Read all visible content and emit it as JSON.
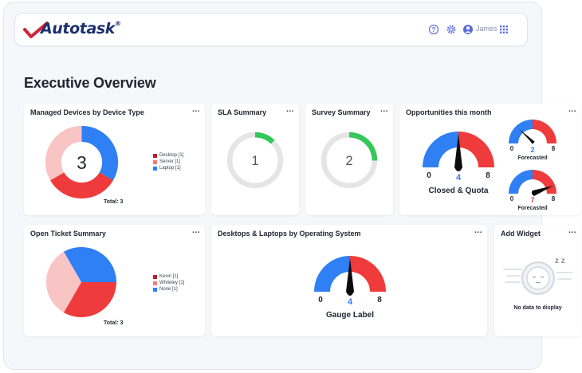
{
  "header": {
    "logo_text": "Autotask",
    "logo_reg": "®",
    "user_name": "James",
    "icons": [
      "help-icon",
      "gear-icon",
      "user-avatar-icon",
      "apps-grid-icon"
    ]
  },
  "page": {
    "title": "Executive Overview"
  },
  "colors": {
    "red": "#ef3b3b",
    "blue": "#2f7ff5",
    "pink": "#f8c4c4",
    "green": "#34c759",
    "ring_gray": "#e5e5e5",
    "menu_dots": "..."
  },
  "widgets": {
    "managed_devices": {
      "title": "Managed Devices by Device Type",
      "menu": "...",
      "center_value": "3",
      "legend": [
        {
          "label": "Desktop [1]",
          "color": "#b4232f"
        },
        {
          "label": "Server [1]",
          "color": "#f47a7a"
        },
        {
          "label": "Laptop [1]",
          "color": "#2f7ff5"
        }
      ],
      "total": "Total: 3"
    },
    "sla_summary": {
      "title": "SLA Summary",
      "menu": "...",
      "value": "1",
      "progress": 0.12
    },
    "survey_summary": {
      "title": "Survey Summary",
      "menu": "...",
      "value": "2",
      "progress": 0.25
    },
    "opportunities": {
      "title": "Opportunities this month",
      "menu": "...",
      "main_gauge": {
        "min": "0",
        "max": "8",
        "value": "4",
        "label": "Closed & Quota"
      },
      "small_gauges": [
        {
          "min": "0",
          "max": "8",
          "value": "2",
          "label": "Forecasted"
        },
        {
          "min": "0",
          "max": "8",
          "value": "7",
          "label": "Forecasted"
        }
      ]
    },
    "open_tickets": {
      "title": "Open Ticket Summary",
      "menu": "...",
      "legend": [
        {
          "label": "Kevin [1]",
          "color": "#b4232f"
        },
        {
          "label": "Whiteley [1]",
          "color": "#f47a7a"
        },
        {
          "label": "None [1]",
          "color": "#2f7ff5"
        }
      ],
      "total": "Total: 3"
    },
    "desktops_laptops": {
      "title": "Desktops & Laptops by Operating System",
      "menu": "...",
      "gauge": {
        "min": "0",
        "max": "8",
        "value": "4",
        "label": "Gauge Label"
      }
    },
    "add_widget": {
      "title": "Add Widget",
      "menu": "...",
      "no_data": "No data to display",
      "zz": "z z"
    }
  }
}
